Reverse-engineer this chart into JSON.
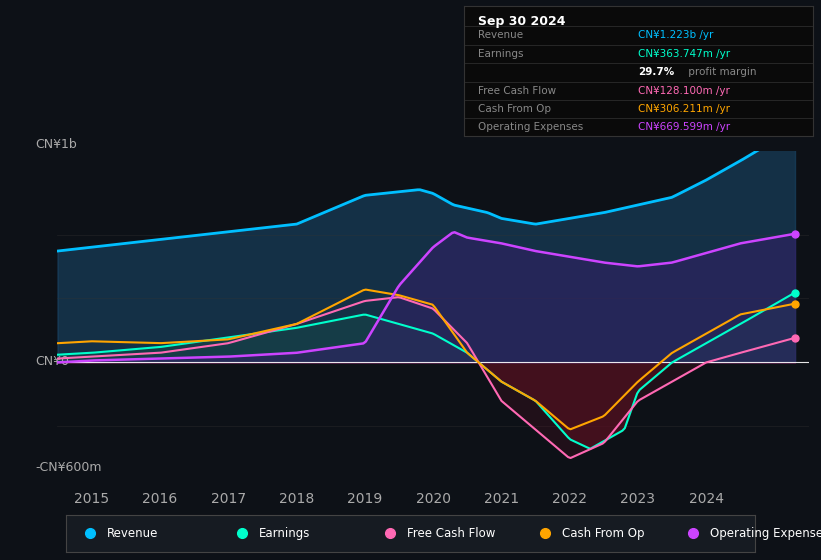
{
  "bg_color": "#0d1117",
  "plot_bg_color": "#0d1117",
  "title": "Sep 30 2024",
  "ylabel_top": "CN¥1b",
  "ylabel_zero": "CN¥0",
  "ylabel_bottom": "-CN¥600m",
  "x_ticks": [
    2015,
    2016,
    2017,
    2018,
    2019,
    2020,
    2021,
    2022,
    2023,
    2024
  ],
  "ylim": [
    -650,
    1100
  ],
  "colors": {
    "revenue": "#00bfff",
    "earnings": "#00ffcc",
    "free_cash_flow": "#ff69b4",
    "cash_from_op": "#ffa500",
    "operating_expenses": "#cc44ff"
  },
  "legend": [
    {
      "label": "Revenue",
      "color": "#00bfff"
    },
    {
      "label": "Earnings",
      "color": "#00ffcc"
    },
    {
      "label": "Free Cash Flow",
      "color": "#ff69b4"
    },
    {
      "label": "Cash From Op",
      "color": "#ffa500"
    },
    {
      "label": "Operating Expenses",
      "color": "#cc44ff"
    }
  ]
}
